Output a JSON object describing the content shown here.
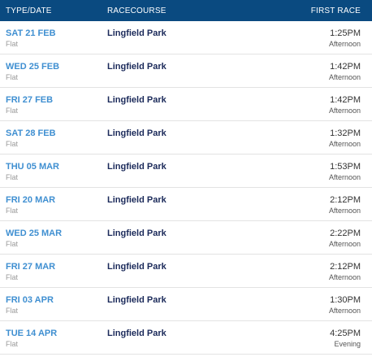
{
  "header": {
    "type_date": "TYPE/DATE",
    "racecourse": "RACECOURSE",
    "first_race": "FIRST RACE"
  },
  "colors": {
    "header_bg": "#0a4a80",
    "date_link": "#3f8fd1",
    "course_text": "#1b2a5a"
  },
  "rows": [
    {
      "date": "SAT 21 FEB",
      "type": "Flat",
      "course": "Lingfield Park",
      "time": "1:25PM",
      "period": "Afternoon"
    },
    {
      "date": "WED 25 FEB",
      "type": "Flat",
      "course": "Lingfield Park",
      "time": "1:42PM",
      "period": "Afternoon"
    },
    {
      "date": "FRI 27 FEB",
      "type": "Flat",
      "course": "Lingfield Park",
      "time": "1:42PM",
      "period": "Afternoon"
    },
    {
      "date": "SAT 28 FEB",
      "type": "Flat",
      "course": "Lingfield Park",
      "time": "1:32PM",
      "period": "Afternoon"
    },
    {
      "date": "THU 05 MAR",
      "type": "Flat",
      "course": "Lingfield Park",
      "time": "1:53PM",
      "period": "Afternoon"
    },
    {
      "date": "FRI 20 MAR",
      "type": "Flat",
      "course": "Lingfield Park",
      "time": "2:12PM",
      "period": "Afternoon"
    },
    {
      "date": "WED 25 MAR",
      "type": "Flat",
      "course": "Lingfield Park",
      "time": "2:22PM",
      "period": "Afternoon"
    },
    {
      "date": "FRI 27 MAR",
      "type": "Flat",
      "course": "Lingfield Park",
      "time": "2:12PM",
      "period": "Afternoon"
    },
    {
      "date": "FRI 03 APR",
      "type": "Flat",
      "course": "Lingfield Park",
      "time": "1:30PM",
      "period": "Afternoon"
    },
    {
      "date": "TUE 14 APR",
      "type": "Flat",
      "course": "Lingfield Park",
      "time": "4:25PM",
      "period": "Evening"
    }
  ]
}
